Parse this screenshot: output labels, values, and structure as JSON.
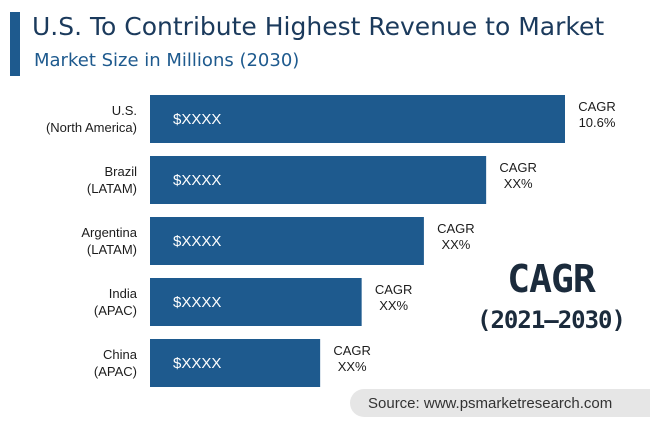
{
  "header": {
    "title": "U.S. To Contribute Highest Revenue to Market",
    "subtitle": "Market Size in Millions (2030)"
  },
  "side_note": {
    "heading": "CAGR",
    "period": "(2021–2030)"
  },
  "footer": {
    "source": "Source: www.psmarketresearch.com"
  },
  "colors": {
    "bar": "#1e5a8e",
    "accent": "#1e5a8e",
    "title": "#1b3a5c"
  },
  "chart_data": {
    "type": "bar",
    "orientation": "horizontal",
    "title": "U.S. To Contribute Highest Revenue to Market",
    "subtitle": "Market Size in Millions (2030)",
    "categories": [
      [
        "U.S.",
        "(North America)"
      ],
      [
        "Brazil",
        "(LATAM)"
      ],
      [
        "Argentina",
        "(LATAM)"
      ],
      [
        "India",
        "(APAC)"
      ],
      [
        "China",
        "(APAC)"
      ]
    ],
    "values": [
      100,
      81,
      66,
      51,
      41
    ],
    "value_labels": [
      "$XXXX",
      "$XXXX",
      "$XXXX",
      "$XXXX",
      "$XXXX"
    ],
    "cagr_labels": [
      [
        "CAGR",
        "10.6%"
      ],
      [
        "CAGR",
        "XX%"
      ],
      [
        "CAGR",
        "XX%"
      ],
      [
        "CAGR",
        "XX%"
      ],
      [
        "CAGR",
        "XX%"
      ]
    ],
    "xlim": [
      0,
      100
    ],
    "grid": false,
    "legend": "none"
  }
}
